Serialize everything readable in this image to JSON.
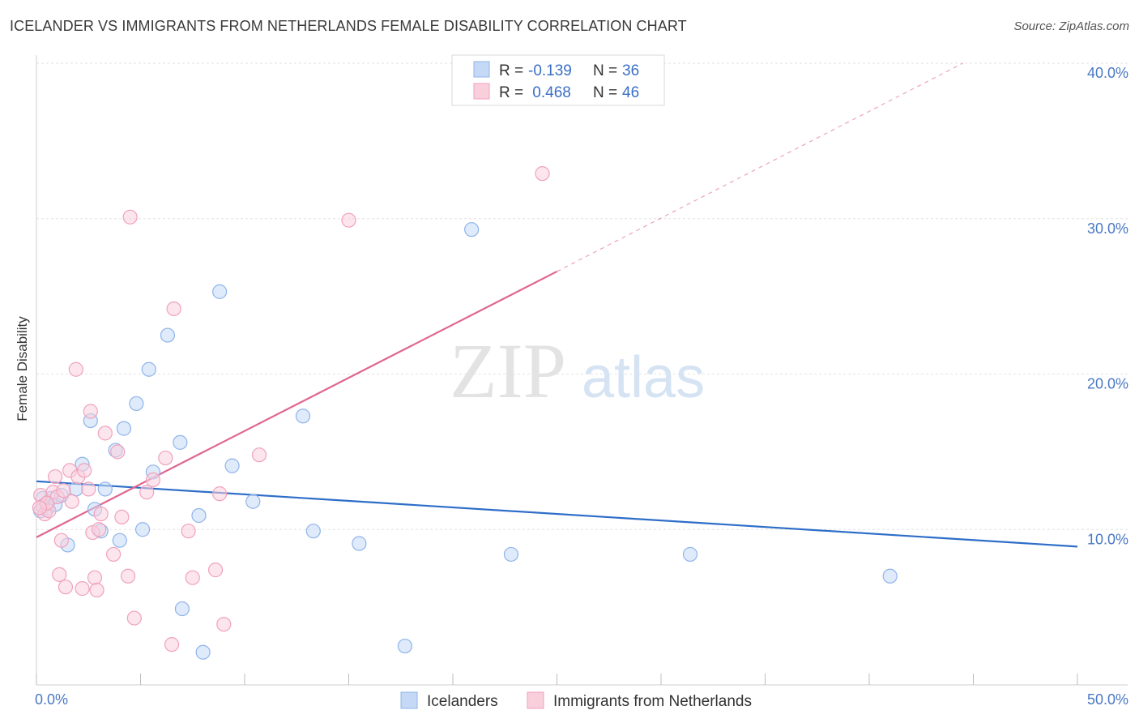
{
  "chart_data": {
    "type": "scatter",
    "title": "ICELANDER VS IMMIGRANTS FROM NETHERLANDS FEMALE DISABILITY CORRELATION CHART",
    "source": "Source: ZipAtlas.com",
    "ylabel": "Female Disability",
    "xlim": [
      0,
      50
    ],
    "ylim": [
      0,
      40
    ],
    "x_ticks": [
      "0.0%",
      "50.0%"
    ],
    "y_ticks": [
      {
        "value": 10,
        "label": "10.0%"
      },
      {
        "value": 20,
        "label": "20.0%"
      },
      {
        "value": 30,
        "label": "30.0%"
      },
      {
        "value": 40,
        "label": "40.0%"
      }
    ],
    "watermark": {
      "left": "ZIP",
      "right": "atlas"
    },
    "legend": [
      {
        "r_label": "R =",
        "r_value": "-0.139",
        "n_label": "N =",
        "n_value": "36"
      },
      {
        "r_label": "R =",
        "r_value": " 0.468",
        "n_label": "N =",
        "n_value": "46"
      }
    ],
    "series": [
      {
        "name": "Icelanders",
        "color": "#8fb4ea",
        "fill": "#c5d8f5",
        "line_color": "#2e6ec8",
        "trend": {
          "x0": 0,
          "y0": 13.1,
          "x1": 50,
          "y1": 8.9
        },
        "points": [
          [
            0.2,
            11.2
          ],
          [
            0.3,
            12.0
          ],
          [
            0.5,
            11.3
          ],
          [
            0.7,
            12.0
          ],
          [
            0.9,
            11.6
          ],
          [
            1.2,
            12.2
          ],
          [
            1.5,
            9.0
          ],
          [
            1.9,
            12.6
          ],
          [
            2.2,
            14.2
          ],
          [
            2.6,
            17.0
          ],
          [
            2.8,
            11.3
          ],
          [
            3.1,
            9.9
          ],
          [
            3.3,
            12.6
          ],
          [
            3.8,
            15.1
          ],
          [
            4.0,
            9.3
          ],
          [
            4.2,
            16.5
          ],
          [
            4.8,
            18.1
          ],
          [
            5.1,
            10.0
          ],
          [
            5.4,
            20.3
          ],
          [
            5.6,
            13.7
          ],
          [
            6.3,
            22.5
          ],
          [
            6.9,
            15.6
          ],
          [
            7.0,
            4.9
          ],
          [
            7.8,
            10.9
          ],
          [
            8.0,
            2.1
          ],
          [
            8.8,
            25.3
          ],
          [
            9.4,
            14.1
          ],
          [
            10.4,
            11.8
          ],
          [
            12.8,
            17.3
          ],
          [
            13.3,
            9.9
          ],
          [
            15.5,
            9.1
          ],
          [
            17.7,
            2.5
          ],
          [
            20.9,
            29.3
          ],
          [
            22.8,
            8.4
          ],
          [
            31.4,
            8.4
          ],
          [
            41.0,
            7.0
          ]
        ]
      },
      {
        "name": "Immigrants from Netherlands",
        "color": "#f0a2bd",
        "fill": "#f9cfdc",
        "line_color": "#e06690",
        "trend": {
          "x0": 0,
          "y0": 9.5,
          "x1": 25.0,
          "y1": 26.6
        },
        "trend_dashed": {
          "x0": 25.0,
          "y0": 26.6,
          "x1": 44.5,
          "y1": 40.0
        },
        "points": [
          [
            0.2,
            12.2
          ],
          [
            0.3,
            11.5
          ],
          [
            0.4,
            11.0
          ],
          [
            0.6,
            11.2
          ],
          [
            0.8,
            12.4
          ],
          [
            0.9,
            13.4
          ],
          [
            1.0,
            12.1
          ],
          [
            1.1,
            7.1
          ],
          [
            1.2,
            9.3
          ],
          [
            1.4,
            6.3
          ],
          [
            1.6,
            13.8
          ],
          [
            1.7,
            11.8
          ],
          [
            1.9,
            20.3
          ],
          [
            2.0,
            13.4
          ],
          [
            2.2,
            6.2
          ],
          [
            2.3,
            13.8
          ],
          [
            2.5,
            12.6
          ],
          [
            2.6,
            17.6
          ],
          [
            2.7,
            9.8
          ],
          [
            2.8,
            6.9
          ],
          [
            2.9,
            6.1
          ],
          [
            3.0,
            10.0
          ],
          [
            3.1,
            11.0
          ],
          [
            3.3,
            16.2
          ],
          [
            3.7,
            8.4
          ],
          [
            3.9,
            15.0
          ],
          [
            4.1,
            10.8
          ],
          [
            4.4,
            7.0
          ],
          [
            4.5,
            30.1
          ],
          [
            4.7,
            4.3
          ],
          [
            5.3,
            12.4
          ],
          [
            5.6,
            13.2
          ],
          [
            6.2,
            14.6
          ],
          [
            6.5,
            2.6
          ],
          [
            6.6,
            24.2
          ],
          [
            7.3,
            9.9
          ],
          [
            7.5,
            6.9
          ],
          [
            8.6,
            7.4
          ],
          [
            8.8,
            12.3
          ],
          [
            9.0,
            3.9
          ],
          [
            10.7,
            14.8
          ],
          [
            15.0,
            29.9
          ],
          [
            24.3,
            32.9
          ],
          [
            0.5,
            11.7
          ],
          [
            1.3,
            12.5
          ],
          [
            0.15,
            11.4
          ]
        ]
      }
    ]
  }
}
